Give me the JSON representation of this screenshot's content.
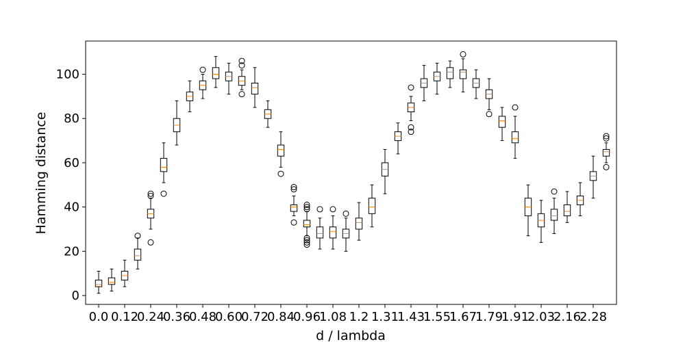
{
  "chart_data": {
    "type": "box",
    "xlabel": "d / lambda",
    "ylabel": "Hamming distance",
    "ylim": [
      -4,
      115
    ],
    "y_ticks": [
      0,
      20,
      40,
      60,
      80,
      100
    ],
    "x_tick_labels": [
      "0.0",
      "0.12",
      "0.24",
      "0.36",
      "0.48",
      "0.60",
      "0.72",
      "0.84",
      "0.96",
      "1.08",
      "1.2",
      "1.31",
      "1.43",
      "1.55",
      "1.67",
      "1.79",
      "1.91",
      "2.03",
      "2.16",
      "2.28"
    ],
    "grid": false,
    "colors": {
      "box": "#000000",
      "median": "#ff7f0e",
      "outlier": "#000000"
    },
    "boxes": [
      {
        "x": 0.0,
        "whislo": 1,
        "q1": 4,
        "med": 5,
        "q3": 7,
        "whishi": 11,
        "fliers": []
      },
      {
        "x": 0.04,
        "whislo": 2,
        "q1": 5,
        "med": 6,
        "q3": 8,
        "whishi": 12,
        "fliers": []
      },
      {
        "x": 0.08,
        "whislo": 4,
        "q1": 7,
        "med": 9,
        "q3": 11,
        "whishi": 16,
        "fliers": []
      },
      {
        "x": 0.12,
        "whislo": 12,
        "q1": 16,
        "med": 18,
        "q3": 21,
        "whishi": 26,
        "fliers": [
          27
        ]
      },
      {
        "x": 0.16,
        "whislo": 30,
        "q1": 35,
        "med": 37,
        "q3": 39,
        "whishi": 44,
        "fliers": [
          24,
          45,
          46
        ]
      },
      {
        "x": 0.2,
        "whislo": 51,
        "q1": 56,
        "med": 58,
        "q3": 62,
        "whishi": 69,
        "fliers": [
          46
        ]
      },
      {
        "x": 0.24,
        "whislo": 68,
        "q1": 74,
        "med": 77,
        "q3": 80,
        "whishi": 88,
        "fliers": []
      },
      {
        "x": 0.28,
        "whislo": 83,
        "q1": 88,
        "med": 90,
        "q3": 92,
        "whishi": 97,
        "fliers": []
      },
      {
        "x": 0.32,
        "whislo": 89,
        "q1": 93,
        "med": 95,
        "q3": 97,
        "whishi": 100,
        "fliers": [
          102
        ]
      },
      {
        "x": 0.36,
        "whislo": 94,
        "q1": 98,
        "med": 100,
        "q3": 103,
        "whishi": 108,
        "fliers": []
      },
      {
        "x": 0.4,
        "whislo": 91,
        "q1": 97,
        "med": 99,
        "q3": 101,
        "whishi": 105,
        "fliers": []
      },
      {
        "x": 0.44,
        "whislo": 93,
        "q1": 95,
        "med": 97,
        "q3": 99,
        "whishi": 102,
        "fliers": [
          91,
          104,
          106
        ]
      },
      {
        "x": 0.48,
        "whislo": 85,
        "q1": 91,
        "med": 94,
        "q3": 96,
        "whishi": 103,
        "fliers": []
      },
      {
        "x": 0.52,
        "whislo": 76,
        "q1": 80,
        "med": 82,
        "q3": 84,
        "whishi": 88,
        "fliers": []
      },
      {
        "x": 0.56,
        "whislo": 58,
        "q1": 63,
        "med": 66,
        "q3": 68,
        "whishi": 74,
        "fliers": [
          55
        ]
      },
      {
        "x": 0.6,
        "whislo": 36,
        "q1": 38,
        "med": 40,
        "q3": 41,
        "whishi": 45,
        "fliers": [
          33,
          48,
          49
        ]
      },
      {
        "x": 0.64,
        "whislo": 27,
        "q1": 31,
        "med": 32,
        "q3": 34,
        "whishi": 38,
        "fliers": [
          23,
          24,
          25,
          26,
          39,
          40,
          41
        ]
      },
      {
        "x": 0.68,
        "whislo": 21,
        "q1": 26,
        "med": 28,
        "q3": 31,
        "whishi": 35,
        "fliers": [
          39
        ]
      },
      {
        "x": 0.72,
        "whislo": 21,
        "q1": 26,
        "med": 29,
        "q3": 31,
        "whishi": 36,
        "fliers": [
          39
        ]
      },
      {
        "x": 0.76,
        "whislo": 20,
        "q1": 26,
        "med": 28,
        "q3": 30,
        "whishi": 35,
        "fliers": [
          37
        ]
      },
      {
        "x": 0.8,
        "whislo": 25,
        "q1": 30,
        "med": 33,
        "q3": 35,
        "whishi": 42,
        "fliers": []
      },
      {
        "x": 0.84,
        "whislo": 31,
        "q1": 37,
        "med": 40,
        "q3": 44,
        "whishi": 50,
        "fliers": []
      },
      {
        "x": 0.88,
        "whislo": 46,
        "q1": 54,
        "med": 57,
        "q3": 60,
        "whishi": 66,
        "fliers": []
      },
      {
        "x": 0.92,
        "whislo": 64,
        "q1": 70,
        "med": 72,
        "q3": 74,
        "whishi": 78,
        "fliers": []
      },
      {
        "x": 0.96,
        "whislo": 79,
        "q1": 83,
        "med": 85,
        "q3": 87,
        "whishi": 90,
        "fliers": [
          74,
          76,
          94
        ]
      },
      {
        "x": 1.0,
        "whislo": 88,
        "q1": 94,
        "med": 96,
        "q3": 98,
        "whishi": 104,
        "fliers": []
      },
      {
        "x": 1.04,
        "whislo": 91,
        "q1": 97,
        "med": 99,
        "q3": 101,
        "whishi": 105,
        "fliers": []
      },
      {
        "x": 1.08,
        "whislo": 94,
        "q1": 98,
        "med": 101,
        "q3": 103,
        "whishi": 106,
        "fliers": []
      },
      {
        "x": 1.12,
        "whislo": 92,
        "q1": 98,
        "med": 101,
        "q3": 102,
        "whishi": 107,
        "fliers": [
          109
        ]
      },
      {
        "x": 1.16,
        "whislo": 89,
        "q1": 94,
        "med": 96,
        "q3": 98,
        "whishi": 102,
        "fliers": []
      },
      {
        "x": 1.2,
        "whislo": 84,
        "q1": 89,
        "med": 91,
        "q3": 93,
        "whishi": 98,
        "fliers": [
          82
        ]
      },
      {
        "x": 1.24,
        "whislo": 70,
        "q1": 76,
        "med": 79,
        "q3": 81,
        "whishi": 85,
        "fliers": []
      },
      {
        "x": 1.28,
        "whislo": 62,
        "q1": 69,
        "med": 71,
        "q3": 74,
        "whishi": 81,
        "fliers": [
          85
        ]
      },
      {
        "x": 1.32,
        "whislo": 27,
        "q1": 36,
        "med": 40,
        "q3": 44,
        "whishi": 50,
        "fliers": []
      },
      {
        "x": 1.36,
        "whislo": 24,
        "q1": 31,
        "med": 34,
        "q3": 37,
        "whishi": 43,
        "fliers": []
      },
      {
        "x": 1.4,
        "whislo": 28,
        "q1": 34,
        "med": 36,
        "q3": 39,
        "whishi": 44,
        "fliers": [
          47
        ]
      },
      {
        "x": 1.44,
        "whislo": 33,
        "q1": 36,
        "med": 38,
        "q3": 41,
        "whishi": 47,
        "fliers": []
      },
      {
        "x": 1.48,
        "whislo": 36,
        "q1": 41,
        "med": 43,
        "q3": 45,
        "whishi": 51,
        "fliers": []
      },
      {
        "x": 1.52,
        "whislo": 44,
        "q1": 52,
        "med": 54,
        "q3": 56,
        "whishi": 63,
        "fliers": []
      },
      {
        "x": 1.56,
        "whislo": 60,
        "q1": 63,
        "med": 65,
        "q3": 66,
        "whishi": 69,
        "fliers": [
          58,
          71,
          72
        ]
      }
    ]
  }
}
